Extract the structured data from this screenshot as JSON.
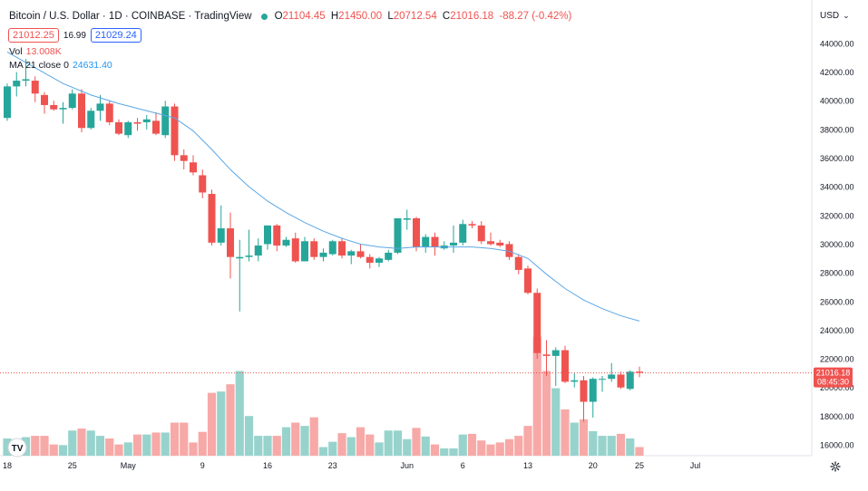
{
  "header": {
    "symbol": "Bitcoin / U.S. Dollar · 1D · COINBASE · TradingView",
    "open_label": "O",
    "open": "21104.45",
    "high_label": "H",
    "high": "21450.00",
    "low_label": "L",
    "low": "20712.54",
    "close_label": "C",
    "close": "21016.18",
    "change": "-88.27 (-0.42%)",
    "bid": "21012.25",
    "spread": "16.99",
    "ask": "21029.24",
    "status_color": "#26a69a"
  },
  "volume_legend": {
    "label": "Vol",
    "value": "13.008K"
  },
  "ma_legend": {
    "label": "MA 21 close 0",
    "value": "24631.40"
  },
  "currency": "USD",
  "last_price_label": {
    "price": "21016.18",
    "countdown": "08:45:30"
  },
  "colors": {
    "up": "#26a69a",
    "down": "#ef5350",
    "ma": "#5ba7e6",
    "vol_up": "#97d3cc",
    "vol_down": "#f7a9a7"
  },
  "chart_data": {
    "type": "candlestick",
    "y_ticks": [
      "16000.00",
      "18000.00",
      "20000.00",
      "22000.00",
      "24000.00",
      "26000.00",
      "28000.00",
      "30000.00",
      "32000.00",
      "34000.00",
      "36000.00",
      "38000.00",
      "40000.00",
      "42000.00",
      "44000.00"
    ],
    "ylim": [
      14800,
      45600
    ],
    "x_ticks": [
      {
        "label": "18",
        "index": 0
      },
      {
        "label": "25",
        "index": 7
      },
      {
        "label": "May",
        "index": 13
      },
      {
        "label": "9",
        "index": 21
      },
      {
        "label": "16",
        "index": 28
      },
      {
        "label": "23",
        "index": 35
      },
      {
        "label": "Jun",
        "index": 43
      },
      {
        "label": "6",
        "index": 49
      },
      {
        "label": "13",
        "index": 56
      },
      {
        "label": "20",
        "index": 63
      },
      {
        "label": "25",
        "index": 68
      },
      {
        "label": "Jul",
        "index": 74
      }
    ],
    "grid": false,
    "candles": [
      {
        "o": 38800,
        "h": 41200,
        "l": 38600,
        "c": 41000,
        "v": 0.26
      },
      {
        "o": 41000,
        "h": 42000,
        "l": 40300,
        "c": 41400,
        "v": 0.2
      },
      {
        "o": 41400,
        "h": 42900,
        "l": 41000,
        "c": 41500,
        "v": 0.28
      },
      {
        "o": 41400,
        "h": 41700,
        "l": 39900,
        "c": 40500,
        "v": 0.3
      },
      {
        "o": 40400,
        "h": 40600,
        "l": 39100,
        "c": 39700,
        "v": 0.3
      },
      {
        "o": 39700,
        "h": 40000,
        "l": 39300,
        "c": 39400,
        "v": 0.17
      },
      {
        "o": 39400,
        "h": 39900,
        "l": 38400,
        "c": 39500,
        "v": 0.16
      },
      {
        "o": 39500,
        "h": 40800,
        "l": 39400,
        "c": 40500,
        "v": 0.38
      },
      {
        "o": 40500,
        "h": 40800,
        "l": 37800,
        "c": 38100,
        "v": 0.41
      },
      {
        "o": 38100,
        "h": 39500,
        "l": 38000,
        "c": 39300,
        "v": 0.38
      },
      {
        "o": 39300,
        "h": 40400,
        "l": 38600,
        "c": 39800,
        "v": 0.3
      },
      {
        "o": 39800,
        "h": 40000,
        "l": 38300,
        "c": 38500,
        "v": 0.26
      },
      {
        "o": 38500,
        "h": 38700,
        "l": 37600,
        "c": 37700,
        "v": 0.17
      },
      {
        "o": 37600,
        "h": 38600,
        "l": 37400,
        "c": 38500,
        "v": 0.2
      },
      {
        "o": 38500,
        "h": 38800,
        "l": 37900,
        "c": 38400,
        "v": 0.32
      },
      {
        "o": 38500,
        "h": 39000,
        "l": 38000,
        "c": 38700,
        "v": 0.32
      },
      {
        "o": 38600,
        "h": 39200,
        "l": 37600,
        "c": 37700,
        "v": 0.35
      },
      {
        "o": 37600,
        "h": 40000,
        "l": 37400,
        "c": 39600,
        "v": 0.35
      },
      {
        "o": 39600,
        "h": 39800,
        "l": 35800,
        "c": 36200,
        "v": 0.5
      },
      {
        "o": 36200,
        "h": 36600,
        "l": 35200,
        "c": 35800,
        "v": 0.5
      },
      {
        "o": 35700,
        "h": 36200,
        "l": 34800,
        "c": 35000,
        "v": 0.2
      },
      {
        "o": 34800,
        "h": 35200,
        "l": 33200,
        "c": 33600,
        "v": 0.36
      },
      {
        "o": 33500,
        "h": 33800,
        "l": 29900,
        "c": 30100,
        "v": 0.95
      },
      {
        "o": 30100,
        "h": 32700,
        "l": 29900,
        "c": 31100,
        "v": 0.97
      },
      {
        "o": 31100,
        "h": 32200,
        "l": 27600,
        "c": 29100,
        "v": 1.08
      },
      {
        "o": 29000,
        "h": 30300,
        "l": 25300,
        "c": 29100,
        "v": 1.28
      },
      {
        "o": 29100,
        "h": 31000,
        "l": 28800,
        "c": 29200,
        "v": 0.6
      },
      {
        "o": 29200,
        "h": 30400,
        "l": 28800,
        "c": 29900,
        "v": 0.3
      },
      {
        "o": 30000,
        "h": 31300,
        "l": 29600,
        "c": 31300,
        "v": 0.3
      },
      {
        "o": 31300,
        "h": 31400,
        "l": 29500,
        "c": 29900,
        "v": 0.3
      },
      {
        "o": 29900,
        "h": 30500,
        "l": 29800,
        "c": 30300,
        "v": 0.43
      },
      {
        "o": 30400,
        "h": 30800,
        "l": 28700,
        "c": 28800,
        "v": 0.5
      },
      {
        "o": 28800,
        "h": 30500,
        "l": 28800,
        "c": 30200,
        "v": 0.45
      },
      {
        "o": 30200,
        "h": 30400,
        "l": 28900,
        "c": 29100,
        "v": 0.58
      },
      {
        "o": 29100,
        "h": 29700,
        "l": 28800,
        "c": 29400,
        "v": 0.13
      },
      {
        "o": 29300,
        "h": 30300,
        "l": 29200,
        "c": 30200,
        "v": 0.21
      },
      {
        "o": 30200,
        "h": 30400,
        "l": 29000,
        "c": 29200,
        "v": 0.34
      },
      {
        "o": 29200,
        "h": 29600,
        "l": 28600,
        "c": 29500,
        "v": 0.28
      },
      {
        "o": 29500,
        "h": 30000,
        "l": 29000,
        "c": 29100,
        "v": 0.43
      },
      {
        "o": 29100,
        "h": 29300,
        "l": 28300,
        "c": 28700,
        "v": 0.32
      },
      {
        "o": 28700,
        "h": 29100,
        "l": 28400,
        "c": 29000,
        "v": 0.2
      },
      {
        "o": 28900,
        "h": 29600,
        "l": 28800,
        "c": 29400,
        "v": 0.38
      },
      {
        "o": 29400,
        "h": 31800,
        "l": 29300,
        "c": 31800,
        "v": 0.38
      },
      {
        "o": 31700,
        "h": 32400,
        "l": 31000,
        "c": 31800,
        "v": 0.25
      },
      {
        "o": 31800,
        "h": 31900,
        "l": 29500,
        "c": 29800,
        "v": 0.42
      },
      {
        "o": 29800,
        "h": 30700,
        "l": 29400,
        "c": 30500,
        "v": 0.29
      },
      {
        "o": 30500,
        "h": 30800,
        "l": 29200,
        "c": 29800,
        "v": 0.17
      },
      {
        "o": 29700,
        "h": 30200,
        "l": 29600,
        "c": 29900,
        "v": 0.11
      },
      {
        "o": 29900,
        "h": 31300,
        "l": 29400,
        "c": 30100,
        "v": 0.11
      },
      {
        "o": 30100,
        "h": 31700,
        "l": 29900,
        "c": 31400,
        "v": 0.32
      },
      {
        "o": 31400,
        "h": 31600,
        "l": 31100,
        "c": 31300,
        "v": 0.33
      },
      {
        "o": 31300,
        "h": 31600,
        "l": 30000,
        "c": 30200,
        "v": 0.23
      },
      {
        "o": 30200,
        "h": 30800,
        "l": 29900,
        "c": 30000,
        "v": 0.17
      },
      {
        "o": 30100,
        "h": 30300,
        "l": 29800,
        "c": 29900,
        "v": 0.2
      },
      {
        "o": 30000,
        "h": 30200,
        "l": 28900,
        "c": 29100,
        "v": 0.25
      },
      {
        "o": 29100,
        "h": 29300,
        "l": 27900,
        "c": 28200,
        "v": 0.3
      },
      {
        "o": 28300,
        "h": 28500,
        "l": 26500,
        "c": 26600,
        "v": 0.45
      },
      {
        "o": 26600,
        "h": 26900,
        "l": 22000,
        "c": 22400,
        "v": 1.8
      },
      {
        "o": 22300,
        "h": 23300,
        "l": 20800,
        "c": 22200,
        "v": 1.28
      },
      {
        "o": 22200,
        "h": 22800,
        "l": 20100,
        "c": 22600,
        "v": 1.02
      },
      {
        "o": 22600,
        "h": 22900,
        "l": 20300,
        "c": 20400,
        "v": 0.7
      },
      {
        "o": 20400,
        "h": 21000,
        "l": 20000,
        "c": 20500,
        "v": 0.5
      },
      {
        "o": 20500,
        "h": 20800,
        "l": 17600,
        "c": 19000,
        "v": 0.55
      },
      {
        "o": 19000,
        "h": 20700,
        "l": 17900,
        "c": 20600,
        "v": 0.37
      },
      {
        "o": 20600,
        "h": 20800,
        "l": 19700,
        "c": 20600,
        "v": 0.3
      },
      {
        "o": 20600,
        "h": 21700,
        "l": 20400,
        "c": 20900,
        "v": 0.3
      },
      {
        "o": 20900,
        "h": 21100,
        "l": 19900,
        "c": 20000,
        "v": 0.33
      },
      {
        "o": 19900,
        "h": 21200,
        "l": 19800,
        "c": 21100,
        "v": 0.26
      },
      {
        "o": 21104.45,
        "h": 21450,
        "l": 20712.54,
        "c": 21016.18,
        "v": 0.13
      }
    ],
    "moving_average": {
      "name": "MA 21 close 0",
      "points": [
        [
          0,
          43400
        ],
        [
          3,
          42300
        ],
        [
          6,
          41200
        ],
        [
          9,
          40400
        ],
        [
          12,
          39800
        ],
        [
          15,
          39300
        ],
        [
          18,
          38800
        ],
        [
          20,
          37900
        ],
        [
          22,
          36600
        ],
        [
          24,
          35200
        ],
        [
          26,
          34000
        ],
        [
          28,
          33000
        ],
        [
          30,
          32200
        ],
        [
          32,
          31500
        ],
        [
          34,
          30900
        ],
        [
          36,
          30400
        ],
        [
          38,
          30000
        ],
        [
          40,
          29800
        ],
        [
          42,
          29700
        ],
        [
          44,
          29800
        ],
        [
          46,
          29800
        ],
        [
          48,
          29800
        ],
        [
          50,
          29800
        ],
        [
          52,
          29700
        ],
        [
          54,
          29500
        ],
        [
          56,
          29000
        ],
        [
          58,
          27900
        ],
        [
          60,
          26900
        ],
        [
          62,
          26100
        ],
        [
          64,
          25500
        ],
        [
          66,
          25000
        ],
        [
          68,
          24631.4
        ]
      ]
    }
  }
}
